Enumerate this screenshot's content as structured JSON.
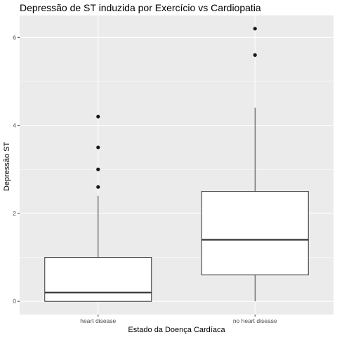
{
  "chart_data": {
    "type": "boxplot",
    "title": "Depressão de ST induzida por Exercício vs Cardiopatia",
    "xlabel": "Estado da Doença Cardíaca",
    "ylabel": "Depressão ST",
    "categories": [
      "heart disease",
      "no heart disease"
    ],
    "yticks": [
      0,
      2,
      4,
      6
    ],
    "ylim": [
      -0.3,
      6.5
    ],
    "boxes": [
      {
        "category": "heart disease",
        "whisker_low": 0,
        "q1": 0,
        "median": 0.2,
        "q3": 1.0,
        "whisker_high": 2.4,
        "outliers": [
          2.6,
          3.0,
          3.5,
          4.2
        ]
      },
      {
        "category": "no heart disease",
        "whisker_low": 0,
        "q1": 0.6,
        "median": 1.4,
        "q3": 2.5,
        "whisker_high": 4.4,
        "outliers": [
          5.6,
          6.2
        ]
      }
    ],
    "grid": true,
    "colors": {
      "panel": "#ebebeb",
      "grid_major": "#ffffff",
      "box_fill": "#ffffff",
      "box_stroke": "#333333",
      "outlier": "#1a1a1a"
    }
  }
}
